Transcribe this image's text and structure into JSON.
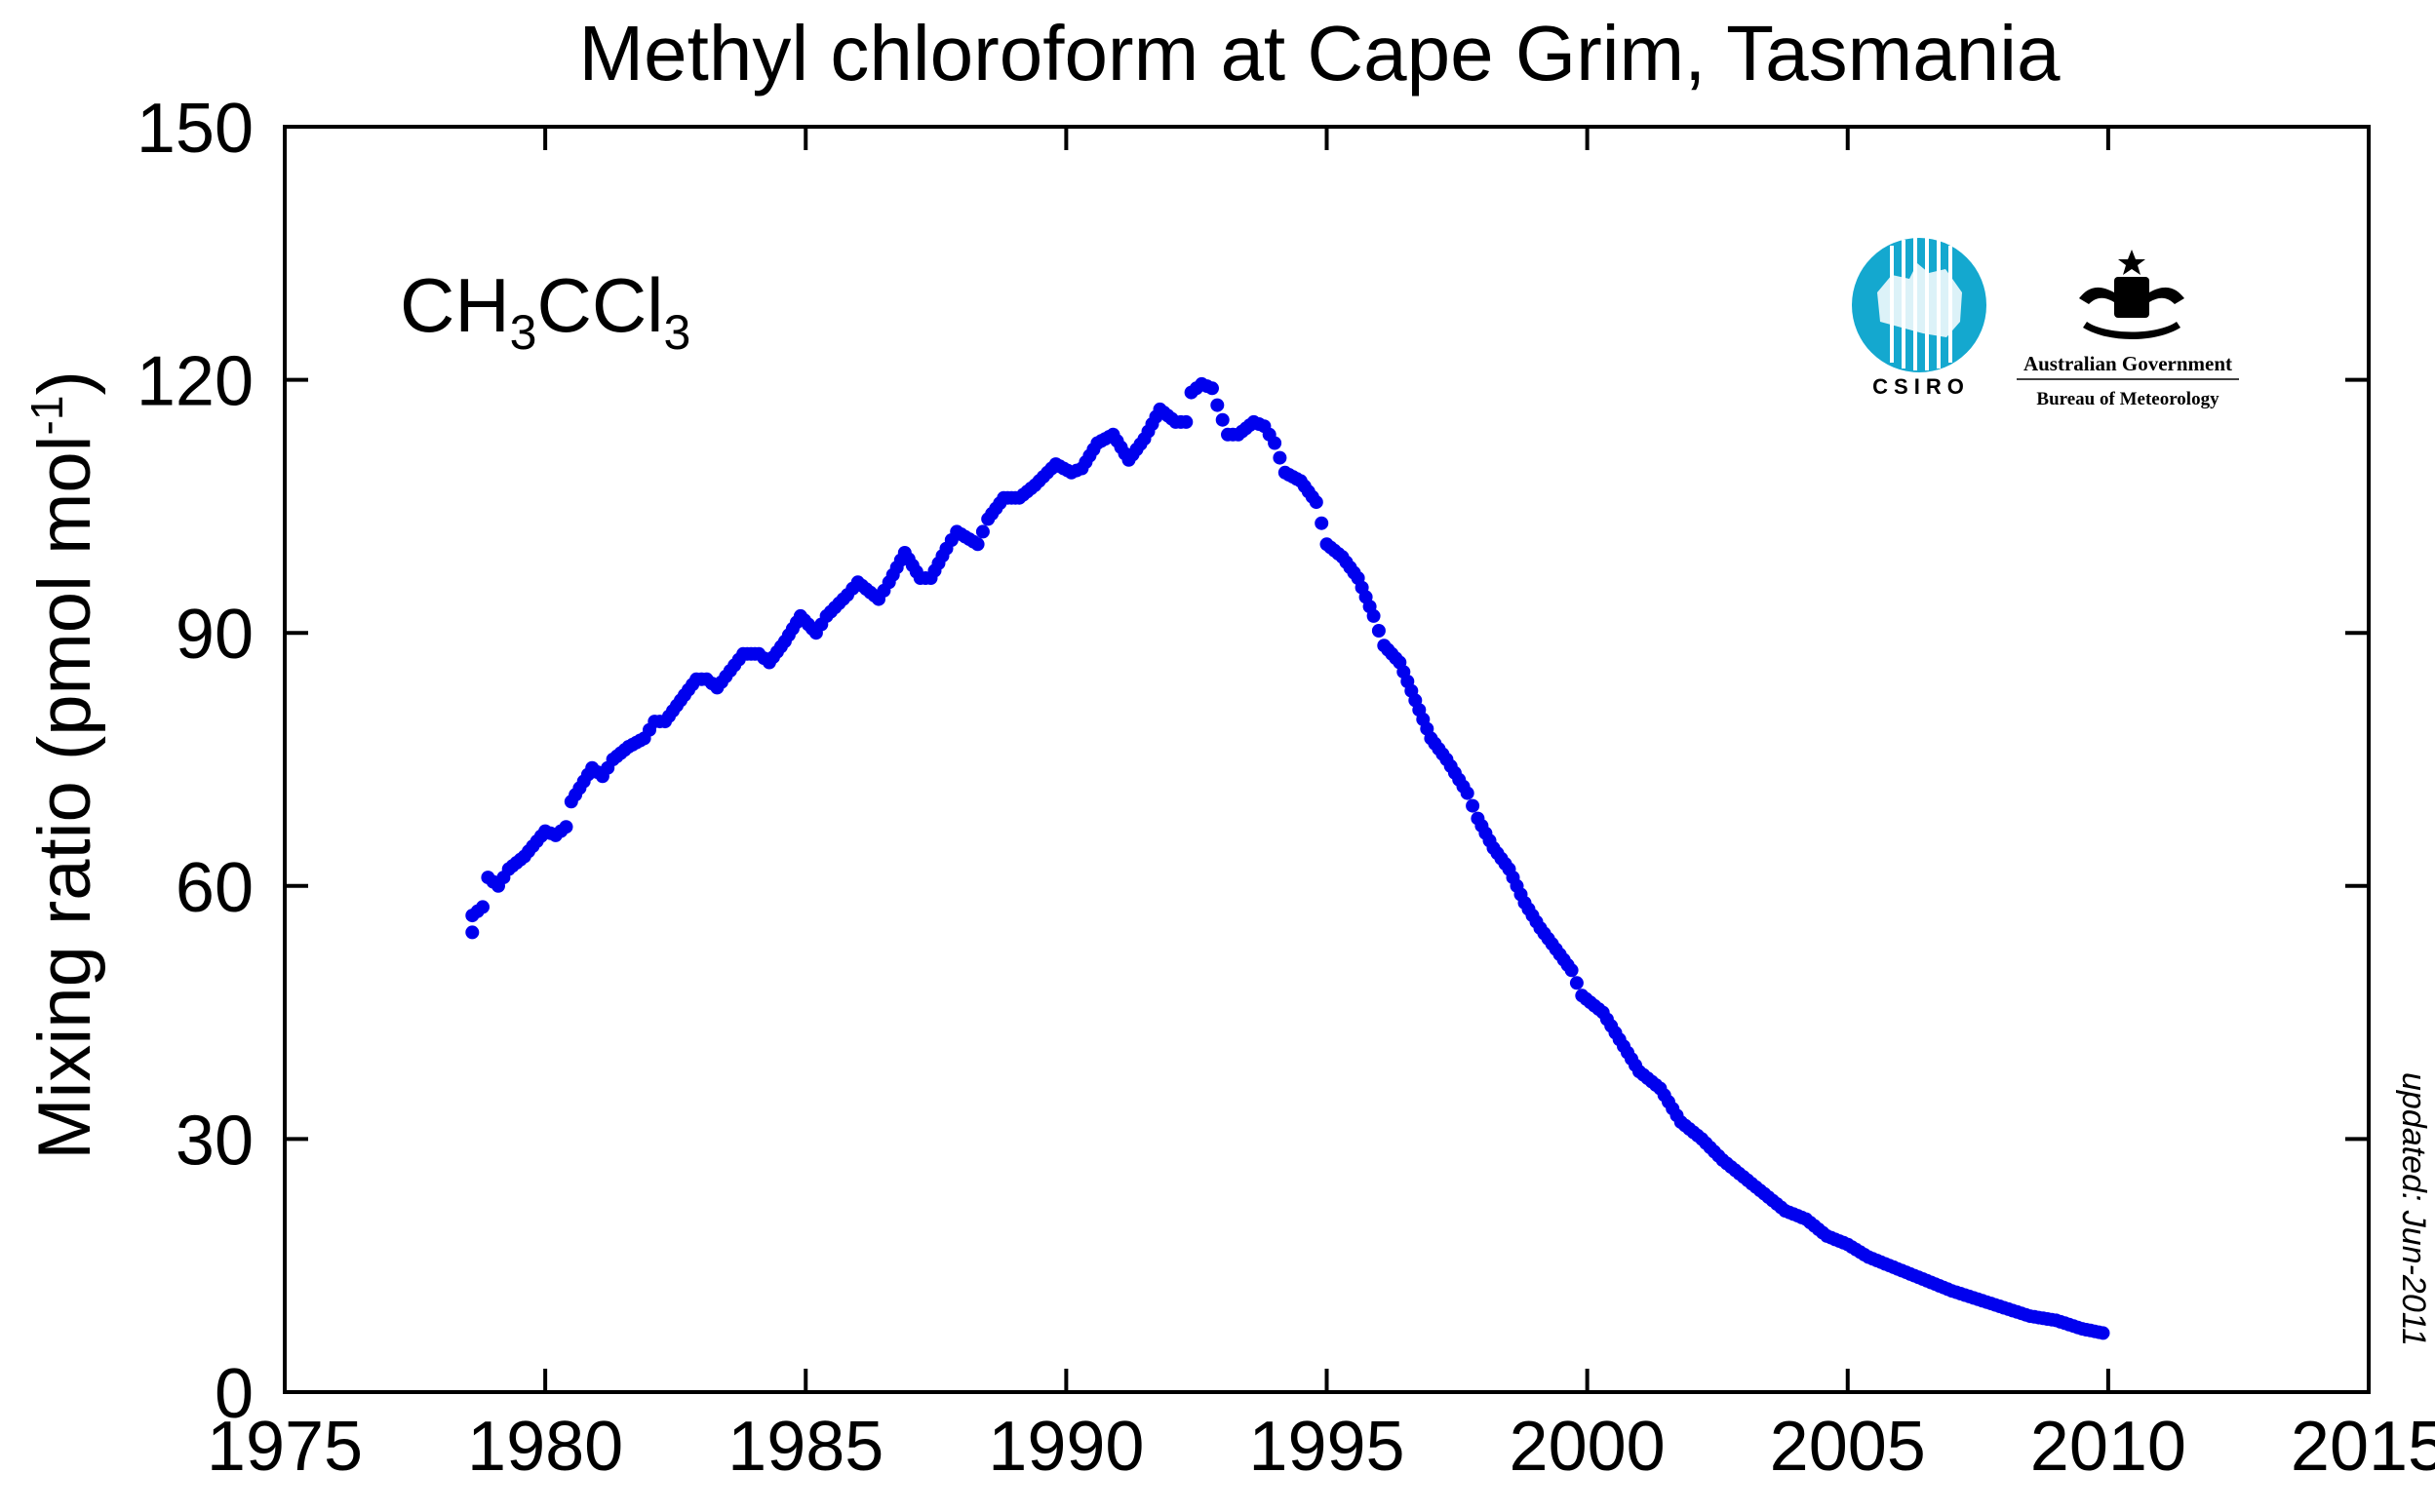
{
  "chart_data": {
    "type": "scatter",
    "title": "Methyl chloroform at Cape Grim, Tasmania",
    "xlabel": "",
    "ylabel": "Mixing ratio (pmol mol",
    "ylabel_sup": "-1",
    "ylabel_close": ")",
    "xlim": [
      1975,
      2015
    ],
    "ylim": [
      0,
      150
    ],
    "x_ticks": [
      1975,
      1980,
      1985,
      1990,
      1995,
      2000,
      2005,
      2010,
      2015
    ],
    "y_ticks": [
      0,
      30,
      60,
      90,
      120,
      150
    ],
    "grid": false,
    "series_color": "#0000ee",
    "annotation": {
      "main": "CH",
      "sub1": "3",
      "mid": "CCl",
      "sub2": "3"
    },
    "updated_note": "updated:  Jun-2011",
    "logos": {
      "csiro_text": "CSIRO",
      "gov_line1": "Australian Government",
      "gov_line2": "Bureau of Meteorology",
      "csiro_color": "#14a8cf"
    },
    "anchors": [
      [
        1978.6,
        54.5
      ],
      [
        1978.6,
        56.5
      ],
      [
        1978.8,
        57.5
      ],
      [
        1978.9,
        61
      ],
      [
        1979.1,
        60
      ],
      [
        1979.3,
        62
      ],
      [
        1979.6,
        63.5
      ],
      [
        1980.0,
        66.5
      ],
      [
        1980.2,
        66
      ],
      [
        1980.4,
        67
      ],
      [
        1980.5,
        70
      ],
      [
        1980.9,
        74
      ],
      [
        1981.1,
        73
      ],
      [
        1981.3,
        75
      ],
      [
        1981.6,
        76.5
      ],
      [
        1981.9,
        77.5
      ],
      [
        1982.1,
        79.5
      ],
      [
        1982.3,
        79.5
      ],
      [
        1982.6,
        82
      ],
      [
        1982.9,
        84.5
      ],
      [
        1983.1,
        84.5
      ],
      [
        1983.3,
        83.5
      ],
      [
        1983.8,
        87.5
      ],
      [
        1984.1,
        87.5
      ],
      [
        1984.3,
        86.5
      ],
      [
        1984.6,
        89
      ],
      [
        1984.9,
        92
      ],
      [
        1985.2,
        90
      ],
      [
        1985.4,
        92
      ],
      [
        1985.8,
        94.5
      ],
      [
        1986.0,
        96
      ],
      [
        1986.4,
        94
      ],
      [
        1986.6,
        96
      ],
      [
        1986.9,
        99.5
      ],
      [
        1987.2,
        96.5
      ],
      [
        1987.4,
        96.5
      ],
      [
        1987.7,
        100
      ],
      [
        1987.9,
        102
      ],
      [
        1988.3,
        100.5
      ],
      [
        1988.5,
        103.5
      ],
      [
        1988.8,
        106
      ],
      [
        1989.1,
        106
      ],
      [
        1989.4,
        107.5
      ],
      [
        1989.8,
        110
      ],
      [
        1990.1,
        109
      ],
      [
        1990.3,
        109.5
      ],
      [
        1990.6,
        112.5
      ],
      [
        1990.9,
        113.5
      ],
      [
        1991.2,
        110.5
      ],
      [
        1991.5,
        113
      ],
      [
        1991.8,
        116.5
      ],
      [
        1992.1,
        115
      ],
      [
        1992.3,
        115
      ],
      [
        1992.4,
        118.5
      ],
      [
        1992.6,
        119.5
      ],
      [
        1992.8,
        119
      ],
      [
        1992.9,
        117
      ],
      [
        1993.1,
        113.5
      ],
      [
        1993.3,
        113.5
      ],
      [
        1993.6,
        115
      ],
      [
        1993.8,
        114.5
      ],
      [
        1994.0,
        112.5
      ],
      [
        1994.2,
        109
      ],
      [
        1994.5,
        108
      ],
      [
        1994.8,
        105.5
      ],
      [
        1995.0,
        100.5
      ],
      [
        1995.3,
        99
      ],
      [
        1995.6,
        96.5
      ],
      [
        1995.9,
        92
      ],
      [
        1996.1,
        88.5
      ],
      [
        1996.4,
        86.5
      ],
      [
        1996.7,
        82
      ],
      [
        1997.0,
        77.5
      ],
      [
        1997.3,
        75
      ],
      [
        1997.7,
        71
      ],
      [
        1997.9,
        68
      ],
      [
        1998.2,
        64.5
      ],
      [
        1998.5,
        62
      ],
      [
        1998.8,
        58
      ],
      [
        1999.1,
        55
      ],
      [
        1999.4,
        52.5
      ],
      [
        1999.7,
        50
      ],
      [
        1999.9,
        47
      ],
      [
        2000.3,
        45
      ],
      [
        2000.7,
        41
      ],
      [
        2001.0,
        38
      ],
      [
        2001.4,
        36
      ],
      [
        2001.8,
        32
      ],
      [
        2002.2,
        30
      ],
      [
        2002.6,
        27.5
      ],
      [
        2003.0,
        25.5
      ],
      [
        2003.4,
        23.5
      ],
      [
        2003.8,
        21.5
      ],
      [
        2004.2,
        20.5
      ],
      [
        2004.6,
        18.5
      ],
      [
        2005.0,
        17.5
      ],
      [
        2005.4,
        16
      ],
      [
        2005.8,
        15
      ],
      [
        2006.2,
        14
      ],
      [
        2006.6,
        13
      ],
      [
        2007.0,
        12
      ],
      [
        2007.5,
        11
      ],
      [
        2008.0,
        10
      ],
      [
        2008.5,
        9
      ],
      [
        2009.0,
        8.5
      ],
      [
        2009.5,
        7.5
      ],
      [
        2009.9,
        7.0
      ]
    ]
  }
}
